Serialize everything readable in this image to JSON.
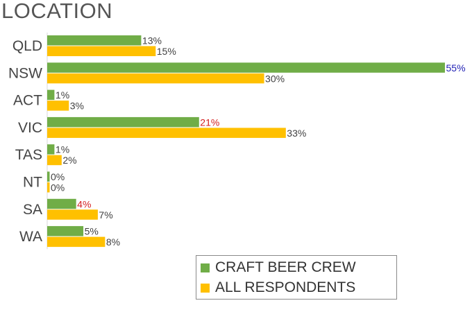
{
  "title": "LOCATION",
  "colors": {
    "crew": "#70ad47",
    "all": "#ffc000",
    "label_default": "#404040",
    "label_high": "#1f1fb4",
    "label_low": "#d42020"
  },
  "chart_data": {
    "type": "bar",
    "orientation": "horizontal",
    "title": "LOCATION",
    "categories": [
      "QLD",
      "NSW",
      "ACT",
      "VIC",
      "TAS",
      "NT",
      "SA",
      "WA"
    ],
    "series": [
      {
        "name": "CRAFT BEER CREW",
        "values": [
          13,
          55,
          1,
          21,
          1,
          0,
          4,
          5
        ],
        "labels": [
          "13%",
          "55%",
          "1%",
          "21%",
          "1%",
          "0%",
          "4%",
          "5%"
        ],
        "label_emphasis": [
          "default",
          "high",
          "default",
          "low",
          "default",
          "default",
          "low",
          "default"
        ]
      },
      {
        "name": "ALL RESPONDENTS",
        "values": [
          15,
          30,
          3,
          33,
          2,
          0,
          7,
          8
        ],
        "labels": [
          "15%",
          "30%",
          "3%",
          "33%",
          "2%",
          "0%",
          "7%",
          "8%"
        ],
        "label_emphasis": [
          "default",
          "default",
          "default",
          "default",
          "default",
          "default",
          "default",
          "default"
        ]
      }
    ],
    "xlim": [
      0,
      55
    ],
    "grid": false,
    "legend_position": "bottom-right"
  },
  "legend": {
    "items": [
      {
        "label": "CRAFT BEER CREW"
      },
      {
        "label": "ALL RESPONDENTS"
      }
    ]
  }
}
